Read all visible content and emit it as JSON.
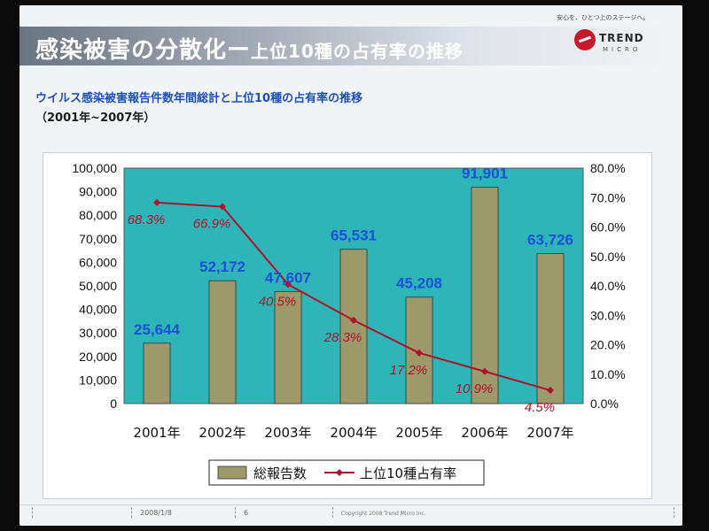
{
  "slide": {
    "title_main": "感染被害の分散化ー",
    "title_sub": "上位10種の占有率の推移",
    "subtitle": "ウイルス感染被害報告件数年間総計と上位10種の占有率の推移",
    "period": "（2001年~2007年）",
    "brand_tagline": "安心を、ひとつ上のステージへ。",
    "brand_name": "TREND",
    "brand_name2": "MICRO",
    "footer_date": "2008/1/8",
    "footer_page": "6",
    "footer_copyright": "Copyright 2008 Trend Micro Inc."
  },
  "colors": {
    "bar": "#9c9a6a",
    "plot_bg": "#2eb5b8",
    "line": "#b0102a",
    "bar_label": "#1b4fd8",
    "line_label": "#b0102a"
  },
  "chart_data": {
    "type": "bar",
    "categories": [
      "2001年",
      "2002年",
      "2003年",
      "2004年",
      "2005年",
      "2006年",
      "2007年"
    ],
    "series": [
      {
        "name": "総報告数",
        "type": "bar",
        "axis": "left",
        "values": [
          25644,
          52172,
          47607,
          65531,
          45208,
          91901,
          63726
        ],
        "labels": [
          "25,644",
          "52,172",
          "47,607",
          "65,531",
          "45,208",
          "91,901",
          "63,726"
        ]
      },
      {
        "name": "上位10種占有率",
        "type": "line",
        "axis": "right",
        "values": [
          68.3,
          66.9,
          40.5,
          28.3,
          17.2,
          10.9,
          4.5
        ],
        "labels": [
          "68.3%",
          "66.9%",
          "40.5%",
          "28.3%",
          "17.2%",
          "10.9%",
          "4.5%"
        ]
      }
    ],
    "y_left": {
      "min": 0,
      "max": 100000,
      "ticks": [
        "0",
        "10,000",
        "20,000",
        "30,000",
        "40,000",
        "50,000",
        "60,000",
        "70,000",
        "80,000",
        "90,000",
        "100,000"
      ]
    },
    "y_right": {
      "min": 0,
      "max": 80,
      "ticks": [
        "0.0%",
        "10.0%",
        "20.0%",
        "30.0%",
        "40.0%",
        "50.0%",
        "60.0%",
        "70.0%",
        "80.0%"
      ]
    },
    "grid": false,
    "legend": "bottom"
  }
}
